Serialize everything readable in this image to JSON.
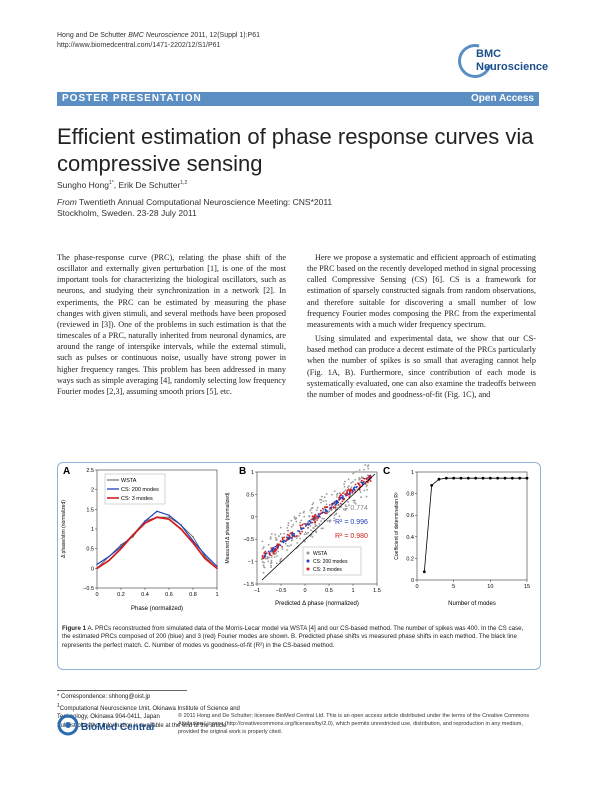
{
  "header": {
    "journal_line1_prefix": "Hong and De Schutter ",
    "journal_line1_italic": "BMC Neuroscience",
    "journal_line1_suffix": " 2011, 12(Suppl 1):P61",
    "journal_line2": "http://www.biomedcentral.com/1471-2202/12/S1/P61",
    "logo_line1": "BMC",
    "logo_line2": "Neuroscience"
  },
  "banner": {
    "left": "POSTER PRESENTATION",
    "right": "Open Access"
  },
  "article": {
    "title": "Efficient estimation of phase response curves via compressive sensing",
    "author1": "Sungho Hong",
    "author1_sup": "1*",
    "author_sep": ", ",
    "author2": "Erik De Schutter",
    "author2_sup": "1,2",
    "conf_from": "From",
    "conf_line1": " Twentieth Annual Computational Neuroscience Meeting: CNS*2011",
    "conf_line2": "Stockholm, Sweden. 23-28 July 2011"
  },
  "body": {
    "left_p1": "The phase-response curve (PRC), relating the phase shift of the oscillator and externally given perturbation [1], is one of the most important tools for characterizing the biological oscillators, such as neurons, and studying their synchronization in a network [2]. In experiments, the PRC can be estimated by measuring the phase changes with given stimuli, and several methods have been proposed (reviewed in [3]). One of the problems in such estimation is that the timescales of a PRC, naturally inherited from neuronal dynamics, are around the range of interspike intervals, while the external stimuli, such as pulses or continuous noise, usually have strong power in higher frequency ranges. This problem has been addressed in many ways such as simple averaging [4], randomly selecting low frequency Fourier modes [2,3], assuming smooth priors [5], etc.",
    "right_p1": "Here we propose a systematic and efficient approach of estimating the PRC based on the recently developed method in signal processing called Compressive Sensing (CS) [6]. CS is a framework for estimation of sparsely constructed signals from random observations, and therefore suitable for discovering a small number of low frequency Fourier modes composing the PRC from the experimental measurements with a much wider frequency spectrum.",
    "right_p2": "Using simulated and experimental data, we show that our CS-based method can produce a decent estimate of the PRCs particularly when the number of spikes is so small that averaging cannot help (Fig. 1A, B). Furthermore, since contribution of each mode is systematically evaluated, one can also examine the tradeoffs between the number of modes and goodness-of-fit (Fig. 1C), and"
  },
  "figure": {
    "panel_a": "A",
    "panel_b": "B",
    "panel_c": "C",
    "a_ylabel": "Δ phase/stim (normalized)",
    "a_xlabel": "Phase (normalized)",
    "a_legend": [
      "WSTA",
      "CS: 200 modes",
      "CS: 3 modes"
    ],
    "b_ylabel": "Measured Δ phase (normalized)",
    "b_xlabel": "Predicted Δ phase (normalized)",
    "b_r2": [
      "R² = 0.774",
      "R² = 0.996",
      "R² = 0.980"
    ],
    "b_legend": [
      "WSTA",
      "CS: 200 modes",
      "CS: 3 modes"
    ],
    "c_ylabel": "Coefficient of determination R²",
    "c_xlabel": "Number of modes",
    "caption_bold": "Figure 1",
    "caption": " A. PRCs reconstructed from simulated data of the Morris-Lecar model via WSTA [4] and our CS-based method. The number of spikes was 400. In the CS case, the estimated PRCs composed of 200 (blue) and 3 (red) Fourier modes are shown. B. Predicted phase shifts vs measured phase shifts in each method. The black line represents the perfect match. C. Number of modes vs goodness-of-fit (R²) in the CS-based method.",
    "colors": {
      "wsta": "#555555",
      "cs200": "#1f3fbf",
      "cs3": "#d11e1e",
      "frame": "#8fb3d9"
    }
  },
  "chart_data": [
    {
      "type": "line",
      "panel": "A",
      "xlabel": "Phase (normalized)",
      "ylabel": "Δ phase/stim (normalized)",
      "xlim": [
        0,
        1
      ],
      "ylim": [
        -0.5,
        2.5
      ],
      "x_ticks": [
        "0",
        "0.2",
        "0.4",
        "0.6",
        "0.8",
        "1"
      ],
      "y_ticks": [
        "−0.5",
        "0",
        "0.5",
        "1",
        "1.5",
        "2",
        "2.5"
      ],
      "x": [
        0,
        0.1,
        0.2,
        0.3,
        0.4,
        0.5,
        0.6,
        0.7,
        0.8,
        0.9,
        1.0
      ],
      "series": [
        {
          "name": "WSTA",
          "values": [
            0.0,
            0.3,
            0.6,
            0.8,
            1.2,
            1.3,
            1.3,
            1.1,
            0.8,
            0.3,
            0.0
          ]
        },
        {
          "name": "CS: 200 modes",
          "values": [
            0.1,
            0.3,
            0.55,
            0.85,
            1.2,
            1.45,
            1.35,
            1.1,
            0.7,
            0.35,
            0.05
          ]
        },
        {
          "name": "CS: 3 modes",
          "values": [
            0.0,
            0.2,
            0.5,
            0.85,
            1.15,
            1.3,
            1.25,
            1.0,
            0.65,
            0.25,
            0.0
          ]
        }
      ]
    },
    {
      "type": "scatter",
      "panel": "B",
      "xlabel": "Predicted Δ phase (normalized)",
      "ylabel": "Measured Δ phase (normalized)",
      "xlim": [
        -1.2,
        1.2
      ],
      "ylim": [
        -1.8,
        1.2
      ],
      "x_ticks": [
        "−1",
        "−0.5",
        "0",
        "0.5",
        "1",
        "1.5"
      ],
      "y_ticks": [
        "−1.5",
        "−1",
        "−0.5",
        "0",
        "0.5",
        "1"
      ],
      "series": [
        {
          "name": "WSTA",
          "r2": 0.774
        },
        {
          "name": "CS: 200 modes",
          "r2": 0.996
        },
        {
          "name": "CS: 3 modes",
          "r2": 0.98
        }
      ]
    },
    {
      "type": "line",
      "panel": "C",
      "xlabel": "Number of modes",
      "ylabel": "Coefficient of determination R²",
      "xlim": [
        0,
        15
      ],
      "ylim": [
        0,
        1.05
      ],
      "x_ticks": [
        "0",
        "5",
        "10",
        "15"
      ],
      "y_ticks": [
        "0",
        "0.2",
        "0.4",
        "0.6",
        "0.8",
        "1"
      ],
      "x": [
        1,
        2,
        3,
        4,
        5,
        6,
        7,
        8,
        9,
        10,
        11,
        12,
        13,
        14,
        15
      ],
      "series": [
        {
          "name": "",
          "values": [
            0.08,
            0.92,
            0.98,
            0.99,
            0.99,
            0.99,
            0.99,
            0.99,
            0.99,
            0.99,
            0.99,
            0.99,
            0.99,
            0.99,
            0.99
          ]
        }
      ]
    }
  ],
  "footer": {
    "correspondence": "* Correspondence: shhong@oist.jp",
    "affil1_sup": "1",
    "affil1": "Computational Neuroscience Unit, Okinawa Institute of Science and",
    "affil1b": "Technology, Okinawa 904-0411, Japan",
    "fulllist": "Full list of author information is available at the end of the article",
    "bmc_logo": "BioMed Central",
    "license": "© 2011 Hong and De Schutter; licensee BioMed Central Ltd. This is an open access article distributed under the terms of the Creative Commons Attribution License (http://creativecommons.org/licenses/by/2.0), which permits unrestricted use, distribution, and reproduction in any medium, provided the original work is properly cited."
  }
}
